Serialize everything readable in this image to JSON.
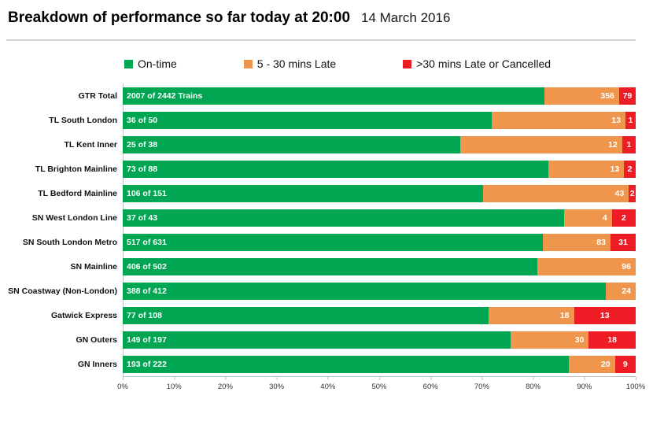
{
  "header": {
    "title": "Breakdown of performance so far today at 20:00",
    "date": "14 March 2016"
  },
  "chart_data": {
    "type": "bar",
    "stacked": true,
    "orientation": "horizontal",
    "title": "Breakdown of performance so far today at 20:00",
    "xlim": [
      0,
      100
    ],
    "x_ticks": [
      "0%",
      "10%",
      "20%",
      "30%",
      "40%",
      "50%",
      "60%",
      "70%",
      "80%",
      "90%",
      "100%"
    ],
    "legend_position": "top",
    "categories": [
      "GTR Total",
      "TL South London",
      "TL Kent Inner",
      "TL Brighton Mainline",
      "TL Bedford Mainline",
      "SN West London Line",
      "SN South London Metro",
      "SN Mainline",
      "SN Coastway (Non-London)",
      "Gatwick Express",
      "GN Outers",
      "GN Inners"
    ],
    "totals": [
      2442,
      50,
      38,
      88,
      151,
      43,
      631,
      502,
      412,
      108,
      197,
      222
    ],
    "ontime_labels": [
      "2007 of 2442 Trains",
      "36 of 50",
      "25 of 38",
      "73 of 88",
      "106 of 151",
      "37 of 43",
      "517 of 631",
      "406 of 502",
      "388 of 412",
      "77 of 108",
      "149 of 197",
      "193 of 222"
    ],
    "series": [
      {
        "name": "On-time",
        "key": "ontime",
        "color": "#00a651",
        "values": [
          2007,
          36,
          25,
          73,
          106,
          37,
          517,
          406,
          388,
          77,
          149,
          193
        ]
      },
      {
        "name": "5 - 30 mins Late",
        "key": "late",
        "color": "#f0954c",
        "values": [
          356,
          13,
          12,
          13,
          43,
          4,
          83,
          96,
          24,
          18,
          30,
          20
        ]
      },
      {
        "name": ">30 mins Late or Cancelled",
        "key": "cancelled",
        "color": "#ee1c25",
        "values": [
          79,
          1,
          1,
          2,
          2,
          2,
          31,
          0,
          0,
          13,
          18,
          9
        ]
      }
    ]
  }
}
